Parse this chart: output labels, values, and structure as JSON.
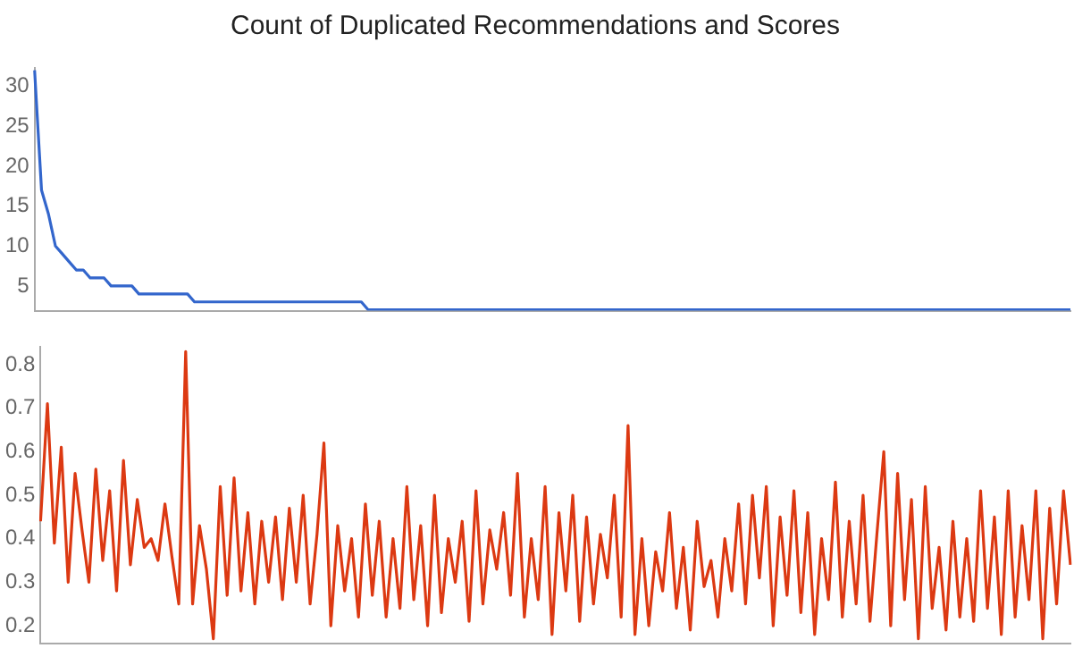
{
  "chart_data": [
    {
      "type": "line",
      "title": "Count of Duplicated Recommendations and Scores",
      "categories": [
        null,
        null,
        null,
        null,
        null,
        null,
        null,
        null,
        null,
        null,
        null,
        null,
        null,
        null,
        null,
        null,
        null,
        null,
        null,
        null,
        null,
        null,
        null,
        null,
        null,
        null,
        null,
        null,
        null,
        null,
        null,
        null,
        null,
        null,
        null,
        null,
        null,
        null,
        null,
        null,
        null,
        null,
        null,
        null,
        null,
        null,
        null,
        null,
        null,
        null,
        null,
        null,
        null,
        null,
        null,
        null,
        null,
        null,
        null,
        null,
        null,
        null,
        null,
        null,
        null,
        null,
        null,
        null,
        null,
        null,
        null,
        null,
        null,
        null,
        null,
        null,
        null,
        null,
        null,
        null,
        null,
        null,
        null,
        null,
        null,
        null,
        null,
        null,
        null,
        null,
        null,
        null,
        null,
        null,
        null,
        null,
        null,
        null,
        null,
        null,
        null,
        null,
        null,
        null,
        null,
        null,
        null,
        null,
        null,
        null,
        null,
        null,
        null,
        null,
        null,
        null,
        null,
        null,
        null,
        null,
        null,
        null,
        null,
        null,
        null,
        null,
        null,
        null,
        null,
        null,
        null,
        null,
        null,
        null,
        null,
        null,
        null,
        null,
        null,
        null,
        null,
        null,
        null,
        null,
        null,
        null,
        null,
        null,
        null,
        null
      ],
      "series": [
        {
          "color": "#3366cc",
          "values": [
            32,
            17,
            14,
            10,
            9,
            8,
            7,
            7,
            6,
            6,
            6,
            5,
            5,
            5,
            5,
            4,
            4,
            4,
            4,
            4,
            4,
            4,
            4,
            3,
            3,
            3,
            3,
            3,
            3,
            3,
            3,
            3,
            3,
            3,
            3,
            3,
            3,
            3,
            3,
            3,
            3,
            3,
            3,
            3,
            3,
            3,
            3,
            3,
            2,
            2,
            2,
            2,
            2,
            2,
            2,
            2,
            2,
            2,
            2,
            2,
            2,
            2,
            2,
            2,
            2,
            2,
            2,
            2,
            2,
            2,
            2,
            2,
            2,
            2,
            2,
            2,
            2,
            2,
            2,
            2,
            2,
            2,
            2,
            2,
            2,
            2,
            2,
            2,
            2,
            2,
            2,
            2,
            2,
            2,
            2,
            2,
            2,
            2,
            2,
            2,
            2,
            2,
            2,
            2,
            2,
            2,
            2,
            2,
            2,
            2,
            2,
            2,
            2,
            2,
            2,
            2,
            2,
            2,
            2,
            2,
            2,
            2,
            2,
            2,
            2,
            2,
            2,
            2,
            2,
            2,
            2,
            2,
            2,
            2,
            2,
            2,
            2,
            2,
            2,
            2,
            2,
            2,
            2,
            2,
            2,
            2,
            2,
            2,
            2,
            2
          ]
        }
      ],
      "ylim": [
        1.9,
        32.3
      ],
      "yticks": [
        5,
        10,
        15,
        20,
        25,
        30
      ],
      "tick_labels": "y",
      "grid": false,
      "legend": false,
      "marker": "none",
      "line_style": "solid"
    },
    {
      "type": "line",
      "categories": [
        null,
        null,
        null,
        null,
        null,
        null,
        null,
        null,
        null,
        null,
        null,
        null,
        null,
        null,
        null,
        null,
        null,
        null,
        null,
        null,
        null,
        null,
        null,
        null,
        null,
        null,
        null,
        null,
        null,
        null,
        null,
        null,
        null,
        null,
        null,
        null,
        null,
        null,
        null,
        null,
        null,
        null,
        null,
        null,
        null,
        null,
        null,
        null,
        null,
        null,
        null,
        null,
        null,
        null,
        null,
        null,
        null,
        null,
        null,
        null,
        null,
        null,
        null,
        null,
        null,
        null,
        null,
        null,
        null,
        null,
        null,
        null,
        null,
        null,
        null,
        null,
        null,
        null,
        null,
        null,
        null,
        null,
        null,
        null,
        null,
        null,
        null,
        null,
        null,
        null,
        null,
        null,
        null,
        null,
        null,
        null,
        null,
        null,
        null,
        null,
        null,
        null,
        null,
        null,
        null,
        null,
        null,
        null,
        null,
        null,
        null,
        null,
        null,
        null,
        null,
        null,
        null,
        null,
        null,
        null,
        null,
        null,
        null,
        null,
        null,
        null,
        null,
        null,
        null,
        null,
        null,
        null,
        null,
        null,
        null,
        null,
        null,
        null,
        null,
        null,
        null,
        null,
        null,
        null,
        null,
        null,
        null,
        null,
        null,
        null
      ],
      "series": [
        {
          "color": "#dc3912",
          "values": [
            0.44,
            0.71,
            0.39,
            0.61,
            0.3,
            0.55,
            0.42,
            0.3,
            0.56,
            0.35,
            0.51,
            0.28,
            0.58,
            0.34,
            0.49,
            0.38,
            0.4,
            0.35,
            0.48,
            0.36,
            0.25,
            0.83,
            0.25,
            0.43,
            0.33,
            0.17,
            0.52,
            0.27,
            0.54,
            0.28,
            0.46,
            0.25,
            0.44,
            0.3,
            0.45,
            0.26,
            0.47,
            0.3,
            0.5,
            0.25,
            0.41,
            0.62,
            0.2,
            0.43,
            0.28,
            0.4,
            0.22,
            0.48,
            0.27,
            0.44,
            0.22,
            0.4,
            0.24,
            0.52,
            0.26,
            0.43,
            0.2,
            0.5,
            0.23,
            0.4,
            0.3,
            0.44,
            0.21,
            0.51,
            0.25,
            0.42,
            0.33,
            0.46,
            0.27,
            0.55,
            0.22,
            0.4,
            0.26,
            0.52,
            0.18,
            0.46,
            0.28,
            0.5,
            0.21,
            0.45,
            0.25,
            0.41,
            0.31,
            0.5,
            0.22,
            0.66,
            0.18,
            0.4,
            0.2,
            0.37,
            0.28,
            0.46,
            0.24,
            0.38,
            0.19,
            0.44,
            0.29,
            0.35,
            0.22,
            0.4,
            0.28,
            0.48,
            0.25,
            0.5,
            0.31,
            0.52,
            0.2,
            0.45,
            0.27,
            0.51,
            0.23,
            0.46,
            0.18,
            0.4,
            0.26,
            0.53,
            0.22,
            0.44,
            0.25,
            0.5,
            0.21,
            0.41,
            0.6,
            0.2,
            0.55,
            0.26,
            0.49,
            0.17,
            0.52,
            0.24,
            0.38,
            0.19,
            0.44,
            0.22,
            0.4,
            0.21,
            0.51,
            0.24,
            0.45,
            0.18,
            0.51,
            0.22,
            0.43,
            0.26,
            0.51,
            0.17,
            0.47,
            0.25,
            0.51,
            0.34
          ]
        }
      ],
      "ylim": [
        0.16,
        0.84
      ],
      "yticks": [
        0.2,
        0.3,
        0.4,
        0.5,
        0.6,
        0.7,
        0.8
      ],
      "tick_labels": "y",
      "grid": false,
      "legend": false,
      "marker": "none",
      "line_style": "solid"
    }
  ]
}
